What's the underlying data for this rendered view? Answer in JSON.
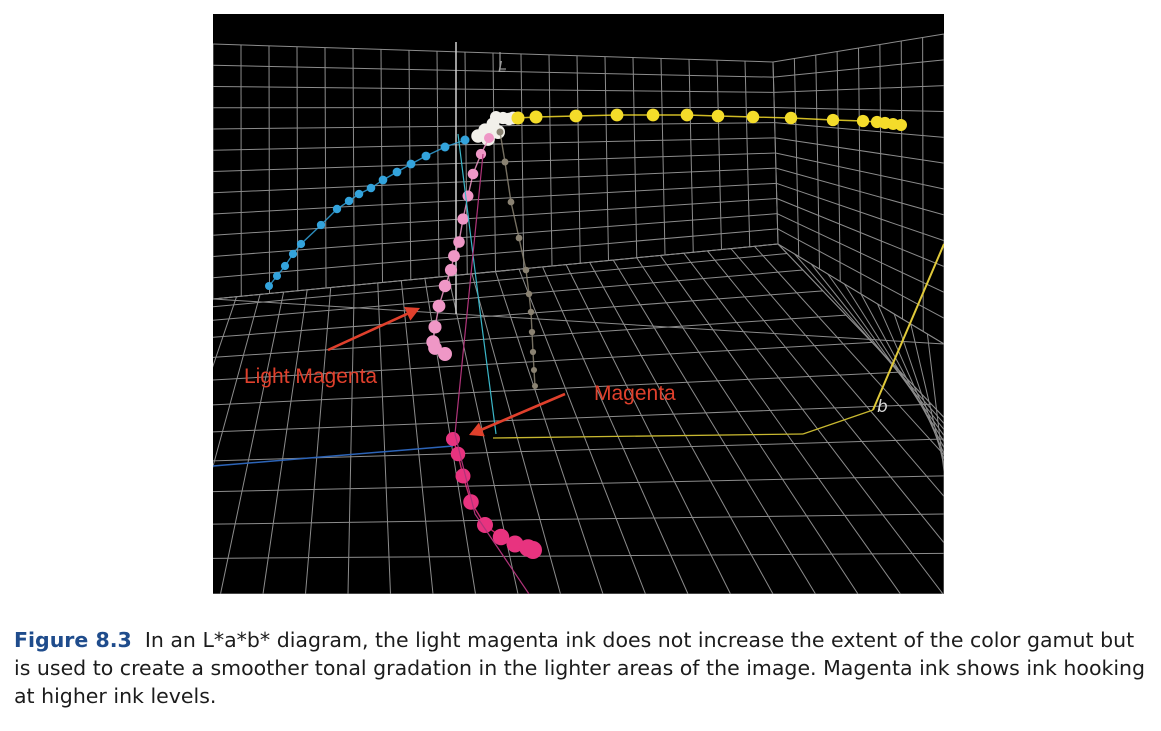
{
  "figure": {
    "labels": {
      "axis_l": "L",
      "axis_b": "b",
      "light_magenta": "Light Magenta",
      "magenta": "Magenta"
    },
    "colors": {
      "background": "#000000",
      "grid": "#8c8c8c",
      "annotation": "#e0402c",
      "yellow": "#f4dc2a",
      "cyan": "#33a3dc",
      "light_magenta": "#ef97c6",
      "magenta": "#e8337f",
      "black_ink": "#8a8272",
      "paper_white": "#f2f0ea"
    }
  },
  "caption": {
    "number": "Figure 8.3",
    "text": "In an L*a*b* diagram, the light magenta ink does not increase the extent of the color gamut but is used to create a smoother tonal gradation in the lighter areas of the image. Magenta ink shows ink hooking at higher ink levels."
  }
}
